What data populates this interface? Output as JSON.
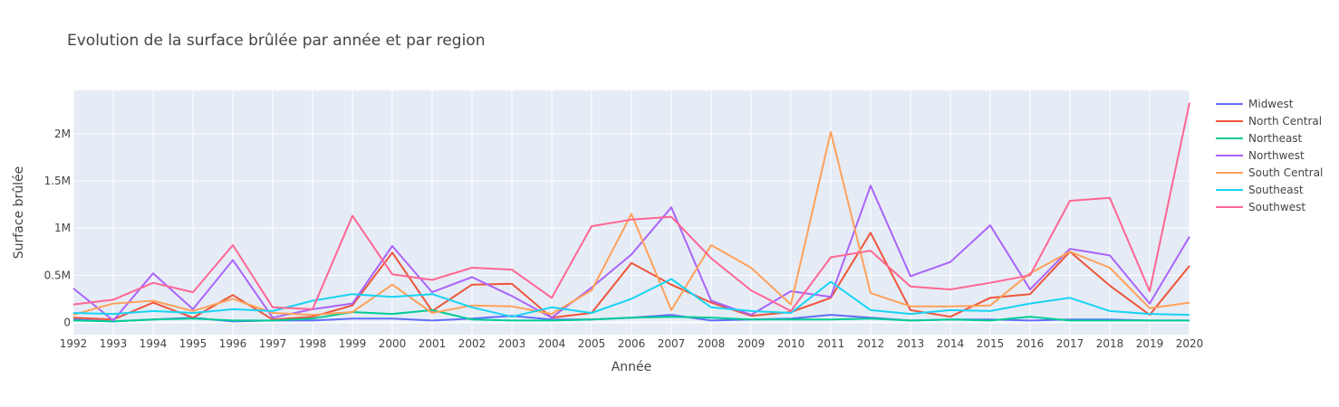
{
  "chart_data": {
    "type": "line",
    "title": "Evolution de la surface brûlée par année et par region",
    "xlabel": "Année",
    "ylabel": "Surface brûlée",
    "x": [
      1992,
      1993,
      1994,
      1995,
      1996,
      1997,
      1998,
      1999,
      2000,
      2001,
      2002,
      2003,
      2004,
      2005,
      2006,
      2007,
      2008,
      2009,
      2010,
      2011,
      2012,
      2013,
      2014,
      2015,
      2016,
      2017,
      2018,
      2019,
      2020
    ],
    "x_tick_labels": [
      "1992",
      "1993",
      "1994",
      "1995",
      "1996",
      "1997",
      "1998",
      "1999",
      "2000",
      "2001",
      "2002",
      "2003",
      "2004",
      "2005",
      "2006",
      "2007",
      "2008",
      "2009",
      "2010",
      "2011",
      "2012",
      "2013",
      "2014",
      "2015",
      "2016",
      "2017",
      "2018",
      "2019",
      "2020"
    ],
    "y_ticks": [
      0,
      500000,
      1000000,
      1500000,
      2000000
    ],
    "y_tick_labels": [
      "0",
      "0.5M",
      "1M",
      "1.5M",
      "2M"
    ],
    "xlim": [
      1992,
      2020
    ],
    "ylim": [
      -130000,
      2460000
    ],
    "grid": true,
    "legend_position": "right",
    "plot_background": "#e5ecf6",
    "series": [
      {
        "name": "Midwest",
        "color": "#636efa",
        "values": [
          30000,
          10000,
          30000,
          50000,
          10000,
          20000,
          20000,
          40000,
          40000,
          20000,
          40000,
          70000,
          30000,
          30000,
          50000,
          80000,
          20000,
          30000,
          40000,
          80000,
          50000,
          20000,
          30000,
          30000,
          20000,
          30000,
          30000,
          20000,
          20000
        ]
      },
      {
        "name": "North Central",
        "color": "#ef553b",
        "values": [
          50000,
          30000,
          210000,
          50000,
          290000,
          30000,
          60000,
          180000,
          740000,
          120000,
          400000,
          410000,
          50000,
          100000,
          630000,
          400000,
          210000,
          70000,
          110000,
          260000,
          950000,
          130000,
          60000,
          260000,
          300000,
          750000,
          390000,
          80000,
          600000
        ]
      },
      {
        "name": "Northeast",
        "color": "#00cc96",
        "values": [
          20000,
          10000,
          30000,
          40000,
          20000,
          20000,
          40000,
          110000,
          90000,
          130000,
          30000,
          20000,
          20000,
          30000,
          50000,
          60000,
          50000,
          30000,
          30000,
          30000,
          40000,
          20000,
          30000,
          20000,
          60000,
          20000,
          20000,
          20000,
          20000
        ]
      },
      {
        "name": "Northwest",
        "color": "#ab63fa",
        "values": [
          360000,
          20000,
          520000,
          140000,
          660000,
          50000,
          140000,
          200000,
          810000,
          320000,
          480000,
          280000,
          50000,
          370000,
          720000,
          1220000,
          230000,
          80000,
          330000,
          270000,
          1450000,
          490000,
          640000,
          1030000,
          350000,
          780000,
          710000,
          200000,
          910000
        ]
      },
      {
        "name": "South Central",
        "color": "#ffa15a",
        "values": [
          80000,
          200000,
          230000,
          120000,
          250000,
          100000,
          80000,
          110000,
          400000,
          100000,
          180000,
          170000,
          90000,
          340000,
          1150000,
          130000,
          820000,
          580000,
          190000,
          2020000,
          310000,
          170000,
          170000,
          180000,
          520000,
          750000,
          580000,
          150000,
          210000
        ]
      },
      {
        "name": "Southeast",
        "color": "#19d3f3",
        "values": [
          100000,
          90000,
          120000,
          100000,
          140000,
          120000,
          230000,
          300000,
          270000,
          300000,
          160000,
          60000,
          160000,
          100000,
          250000,
          460000,
          160000,
          120000,
          100000,
          430000,
          130000,
          90000,
          130000,
          120000,
          200000,
          260000,
          120000,
          90000,
          80000
        ]
      },
      {
        "name": "Southwest",
        "color": "#ff6692",
        "values": [
          190000,
          240000,
          420000,
          320000,
          820000,
          160000,
          140000,
          1130000,
          510000,
          450000,
          580000,
          560000,
          260000,
          1020000,
          1090000,
          1120000,
          680000,
          340000,
          120000,
          690000,
          760000,
          380000,
          350000,
          420000,
          500000,
          1290000,
          1320000,
          330000,
          2330000
        ]
      }
    ]
  }
}
